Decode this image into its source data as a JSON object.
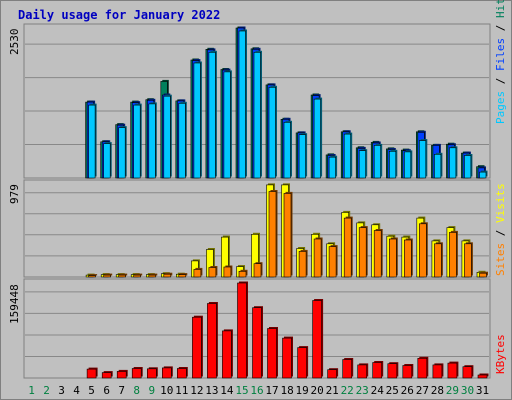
{
  "title": "Daily usage for January 2022",
  "colors": {
    "hits": "#00805c",
    "files": "#0040ff",
    "pages": "#00c8ff",
    "visits": "#ffff00",
    "sites": "#ff8000",
    "kbytes": "#ff0000",
    "weekday": "#000000",
    "weekend": "#008040",
    "title": "#0000c0"
  },
  "chart_data": [
    {
      "type": "bar",
      "panel": "hits-files-pages",
      "right_label": [
        {
          "text": "Pages",
          "color": "#00c8ff"
        },
        {
          "text": " / ",
          "color": "#000000"
        },
        {
          "text": "Files",
          "color": "#0040ff"
        },
        {
          "text": " / ",
          "color": "#000000"
        },
        {
          "text": "Hits",
          "color": "#00805c"
        }
      ],
      "max_label": "2530",
      "ylim": [
        0,
        2530
      ],
      "categories": [
        "1",
        "2",
        "3",
        "4",
        "5",
        "6",
        "7",
        "8",
        "9",
        "10",
        "11",
        "12",
        "13",
        "14",
        "15",
        "16",
        "17",
        "18",
        "19",
        "20",
        "21",
        "22",
        "23",
        "24",
        "25",
        "26",
        "27",
        "28",
        "29",
        "30",
        "31"
      ],
      "series": [
        {
          "name": "Hits",
          "values": [
            0,
            0,
            0,
            0,
            1280,
            610,
            900,
            1280,
            1320,
            1630,
            1300,
            1990,
            2170,
            1830,
            2530,
            2180,
            1570,
            990,
            760,
            1400,
            390,
            780,
            510,
            600,
            490,
            470,
            780,
            550,
            570,
            420,
            190
          ]
        },
        {
          "name": "Files",
          "values": [
            0,
            0,
            0,
            0,
            1280,
            610,
            890,
            1270,
            1310,
            1400,
            1300,
            1980,
            2160,
            1820,
            2530,
            2170,
            1570,
            990,
            760,
            1390,
            380,
            780,
            500,
            590,
            480,
            460,
            770,
            550,
            560,
            420,
            170
          ]
        },
        {
          "name": "Pages",
          "values": [
            0,
            0,
            0,
            0,
            1230,
            580,
            850,
            1230,
            1250,
            1380,
            1260,
            1940,
            2120,
            1790,
            2480,
            2120,
            1530,
            940,
            730,
            1330,
            350,
            740,
            460,
            550,
            450,
            440,
            630,
            400,
            510,
            380,
            100
          ]
        }
      ]
    },
    {
      "type": "bar",
      "panel": "visits-sites",
      "right_label": [
        {
          "text": "Sites",
          "color": "#ff8000"
        },
        {
          "text": " / ",
          "color": "#000000"
        },
        {
          "text": "Visits",
          "color": "#ffff00"
        }
      ],
      "max_label": "979",
      "ylim": [
        0,
        979
      ],
      "categories": [
        "1",
        "2",
        "3",
        "4",
        "5",
        "6",
        "7",
        "8",
        "9",
        "10",
        "11",
        "12",
        "13",
        "14",
        "15",
        "16",
        "17",
        "18",
        "19",
        "20",
        "21",
        "22",
        "23",
        "24",
        "25",
        "26",
        "27",
        "28",
        "29",
        "30",
        "31"
      ],
      "series": [
        {
          "name": "Visits",
          "values": [
            0,
            0,
            0,
            0,
            20,
            25,
            25,
            25,
            25,
            35,
            30,
            170,
            290,
            420,
            110,
            450,
            970,
            970,
            300,
            450,
            350,
            680,
            570,
            550,
            430,
            420,
            620,
            380,
            520,
            380,
            50
          ]
        },
        {
          "name": "Sites",
          "values": [
            0,
            0,
            0,
            0,
            15,
            20,
            20,
            20,
            20,
            30,
            25,
            80,
            100,
            105,
            60,
            140,
            900,
            880,
            270,
            400,
            320,
            620,
            520,
            490,
            400,
            390,
            560,
            350,
            470,
            350,
            40
          ]
        }
      ]
    },
    {
      "type": "bar",
      "panel": "kbytes",
      "right_label": [
        {
          "text": "KBytes",
          "color": "#ff0000"
        }
      ],
      "max_label": "159448",
      "ylim": [
        0,
        159448
      ],
      "categories": [
        "1",
        "2",
        "3",
        "4",
        "5",
        "6",
        "7",
        "8",
        "9",
        "10",
        "11",
        "12",
        "13",
        "14",
        "15",
        "16",
        "17",
        "18",
        "19",
        "20",
        "21",
        "22",
        "23",
        "24",
        "25",
        "26",
        "27",
        "28",
        "29",
        "30",
        "31"
      ],
      "series": [
        {
          "name": "KBytes",
          "values": [
            0,
            0,
            0,
            0,
            15000,
            9000,
            11000,
            16000,
            15500,
            17000,
            16000,
            102000,
            125000,
            79000,
            159448,
            118000,
            83000,
            67000,
            51000,
            130000,
            14000,
            31000,
            22000,
            26000,
            24000,
            21000,
            33000,
            22000,
            25000,
            19000,
            5000
          ]
        }
      ]
    }
  ],
  "x_axis": {
    "labels": [
      "1",
      "2",
      "3",
      "4",
      "5",
      "6",
      "7",
      "8",
      "9",
      "10",
      "11",
      "12",
      "13",
      "14",
      "15",
      "16",
      "17",
      "18",
      "19",
      "20",
      "21",
      "22",
      "23",
      "24",
      "25",
      "26",
      "27",
      "28",
      "29",
      "30",
      "31"
    ],
    "weekend": [
      true,
      true,
      false,
      false,
      false,
      false,
      false,
      true,
      true,
      false,
      false,
      false,
      false,
      false,
      true,
      true,
      false,
      false,
      false,
      false,
      false,
      true,
      true,
      false,
      false,
      false,
      false,
      false,
      true,
      true,
      false
    ]
  }
}
